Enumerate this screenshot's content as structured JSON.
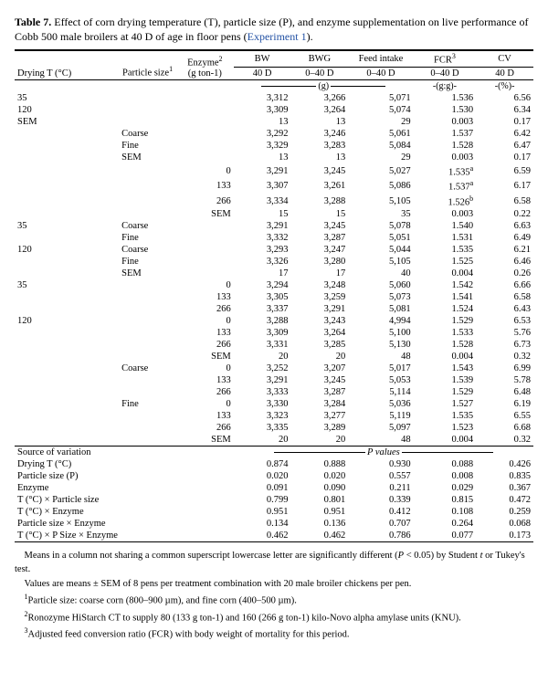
{
  "caption": {
    "label": "Table 7.",
    "text_a": " Effect of corn drying temperature (T), particle size (P), and enzyme supplementation on live performance of Cobb 500 male broilers at 40 D of age in floor pens (",
    "link": "Experiment 1",
    "text_b": ")."
  },
  "headers": {
    "h1": "Drying T (°C)",
    "h2": "Particle size",
    "h2_sup": "1",
    "h3": "Enzyme",
    "h3_sup": "2",
    "h3_sub": "(g ton-1)",
    "bw": "BW",
    "bwg": "BWG",
    "fi": "Feed intake",
    "fcr": "FCR",
    "fcr_sup": "3",
    "cv": "CV",
    "d40": "40 D",
    "d040": "0–40 D",
    "u_g": "(g)",
    "u_gg": "-(g:g)-",
    "u_pct": "-(%)-"
  },
  "rows": [
    {
      "c1": "35",
      "c2": "",
      "c3": "",
      "bw": "3,312",
      "bwg": "3,266",
      "fi": "5,071",
      "fcr": "1.536",
      "cv": "6.56"
    },
    {
      "c1": "120",
      "c2": "",
      "c3": "",
      "bw": "3,309",
      "bwg": "3,264",
      "fi": "5,074",
      "fcr": "1.530",
      "cv": "6.34"
    },
    {
      "c1": "SEM",
      "c2": "",
      "c3": "",
      "bw": "13",
      "bwg": "13",
      "fi": "29",
      "fcr": "0.003",
      "cv": "0.17"
    },
    {
      "c1": "",
      "c2": "Coarse",
      "c3": "",
      "bw": "3,292",
      "bwg": "3,246",
      "fi": "5,061",
      "fcr": "1.537",
      "cv": "6.42"
    },
    {
      "c1": "",
      "c2": "Fine",
      "c3": "",
      "bw": "3,329",
      "bwg": "3,283",
      "fi": "5,084",
      "fcr": "1.528",
      "cv": "6.47"
    },
    {
      "c1": "",
      "c2": "SEM",
      "c3": "",
      "bw": "13",
      "bwg": "13",
      "fi": "29",
      "fcr": "0.003",
      "cv": "0.17"
    },
    {
      "c1": "",
      "c2": "",
      "c3": "0",
      "bw": "3,291",
      "bwg": "3,245",
      "fi": "5,027",
      "fcr": "1.535",
      "fcr_sup": "a",
      "cv": "6.59"
    },
    {
      "c1": "",
      "c2": "",
      "c3": "133",
      "bw": "3,307",
      "bwg": "3,261",
      "fi": "5,086",
      "fcr": "1.537",
      "fcr_sup": "a",
      "cv": "6.17"
    },
    {
      "c1": "",
      "c2": "",
      "c3": "266",
      "bw": "3,334",
      "bwg": "3,288",
      "fi": "5,105",
      "fcr": "1.526",
      "fcr_sup": "b",
      "cv": "6.58"
    },
    {
      "c1": "",
      "c2": "",
      "c3": "SEM",
      "bw": "15",
      "bwg": "15",
      "fi": "35",
      "fcr": "0.003",
      "cv": "0.22"
    },
    {
      "c1": "35",
      "c2": "Coarse",
      "c3": "",
      "bw": "3,291",
      "bwg": "3,245",
      "fi": "5,078",
      "fcr": "1.540",
      "cv": "6.63"
    },
    {
      "c1": "",
      "c2": "Fine",
      "c3": "",
      "bw": "3,332",
      "bwg": "3,287",
      "fi": "5,051",
      "fcr": "1.531",
      "cv": "6.49"
    },
    {
      "c1": "120",
      "c2": "Coarse",
      "c3": "",
      "bw": "3,293",
      "bwg": "3,247",
      "fi": "5,044",
      "fcr": "1.535",
      "cv": "6.21"
    },
    {
      "c1": "",
      "c2": "Fine",
      "c3": "",
      "bw": "3,326",
      "bwg": "3,280",
      "fi": "5,105",
      "fcr": "1.525",
      "cv": "6.46"
    },
    {
      "c1": "",
      "c2": "SEM",
      "c3": "",
      "bw": "17",
      "bwg": "17",
      "fi": "40",
      "fcr": "0.004",
      "cv": "0.26"
    },
    {
      "c1": "35",
      "c2": "",
      "c3": "0",
      "bw": "3,294",
      "bwg": "3,248",
      "fi": "5,060",
      "fcr": "1.542",
      "cv": "6.66"
    },
    {
      "c1": "",
      "c2": "",
      "c3": "133",
      "bw": "3,305",
      "bwg": "3,259",
      "fi": "5,073",
      "fcr": "1.541",
      "cv": "6.58"
    },
    {
      "c1": "",
      "c2": "",
      "c3": "266",
      "bw": "3,337",
      "bwg": "3,291",
      "fi": "5,081",
      "fcr": "1.524",
      "cv": "6.43"
    },
    {
      "c1": "120",
      "c2": "",
      "c3": "0",
      "bw": "3,288",
      "bwg": "3,243",
      "fi": "4,994",
      "fcr": "1.529",
      "cv": "6.53"
    },
    {
      "c1": "",
      "c2": "",
      "c3": "133",
      "bw": "3,309",
      "bwg": "3,264",
      "fi": "5,100",
      "fcr": "1.533",
      "cv": "5.76"
    },
    {
      "c1": "",
      "c2": "",
      "c3": "266",
      "bw": "3,331",
      "bwg": "3,285",
      "fi": "5,130",
      "fcr": "1.528",
      "cv": "6.73"
    },
    {
      "c1": "",
      "c2": "",
      "c3": "SEM",
      "bw": "20",
      "bwg": "20",
      "fi": "48",
      "fcr": "0.004",
      "cv": "0.32"
    },
    {
      "c1": "",
      "c2": "Coarse",
      "c3": "0",
      "bw": "3,252",
      "bwg": "3,207",
      "fi": "5,017",
      "fcr": "1.543",
      "cv": "6.99"
    },
    {
      "c1": "",
      "c2": "",
      "c3": "133",
      "bw": "3,291",
      "bwg": "3,245",
      "fi": "5,053",
      "fcr": "1.539",
      "cv": "5.78"
    },
    {
      "c1": "",
      "c2": "",
      "c3": "266",
      "bw": "3,333",
      "bwg": "3,287",
      "fi": "5,114",
      "fcr": "1.529",
      "cv": "6.48"
    },
    {
      "c1": "",
      "c2": "Fine",
      "c3": "0",
      "bw": "3,330",
      "bwg": "3,284",
      "fi": "5,036",
      "fcr": "1.527",
      "cv": "6.19"
    },
    {
      "c1": "",
      "c2": "",
      "c3": "133",
      "bw": "3,323",
      "bwg": "3,277",
      "fi": "5,119",
      "fcr": "1.535",
      "cv": "6.55"
    },
    {
      "c1": "",
      "c2": "",
      "c3": "266",
      "bw": "3,335",
      "bwg": "3,289",
      "fi": "5,097",
      "fcr": "1.523",
      "cv": "6.68"
    },
    {
      "c1": "",
      "c2": "",
      "c3": "SEM",
      "bw": "20",
      "bwg": "20",
      "fi": "48",
      "fcr": "0.004",
      "cv": "0.32"
    }
  ],
  "source_label": "Source of variation",
  "pvalues_label": "P values",
  "pvalues": [
    {
      "label": "Drying T (°C)",
      "bw": "0.874",
      "bwg": "0.888",
      "fi": "0.930",
      "fcr": "0.088",
      "cv": "0.426"
    },
    {
      "label": "Particle size (P)",
      "bw": "0.020",
      "bwg": "0.020",
      "fi": "0.557",
      "fcr": "0.008",
      "cv": "0.835"
    },
    {
      "label": "Enzyme",
      "bw": "0.091",
      "bwg": "0.090",
      "fi": "0.211",
      "fcr": "0.029",
      "cv": "0.367"
    },
    {
      "label": "T (°C) × Particle size",
      "bw": "0.799",
      "bwg": "0.801",
      "fi": "0.339",
      "fcr": "0.815",
      "cv": "0.472"
    },
    {
      "label": "T (°C) × Enzyme",
      "bw": "0.951",
      "bwg": "0.951",
      "fi": "0.412",
      "fcr": "0.108",
      "cv": "0.259"
    },
    {
      "label": "Particle size × Enzyme",
      "bw": "0.134",
      "bwg": "0.136",
      "fi": "0.707",
      "fcr": "0.264",
      "cv": "0.068"
    },
    {
      "label": "T (°C) × P Size × Enzyme",
      "bw": "0.462",
      "bwg": "0.462",
      "fi": "0.786",
      "fcr": "0.077",
      "cv": "0.173"
    }
  ],
  "footnotes": {
    "f0a": "Means in a column not sharing a common superscript lowercase letter are significantly different (",
    "f0p": "P",
    "f0b": " < 0.05) by Student ",
    "f0t": "t",
    "f0c": " or Tukey's test.",
    "f1": "Values are means ± SEM of 8 pens per treatment combination with 20 male broiler chickens per pen.",
    "f2_sup": "1",
    "f2": "Particle size: coarse corn (800–900 µm), and fine corn (400–500 µm).",
    "f3_sup": "2",
    "f3": "Ronozyme HiStarch CT to supply 80 (133 g ton-1) and 160 (266 g ton-1) kilo-Novo alpha amylase units (KNU).",
    "f4_sup": "3",
    "f4": "Adjusted feed conversion ratio (FCR) with body weight of mortality for this period."
  }
}
